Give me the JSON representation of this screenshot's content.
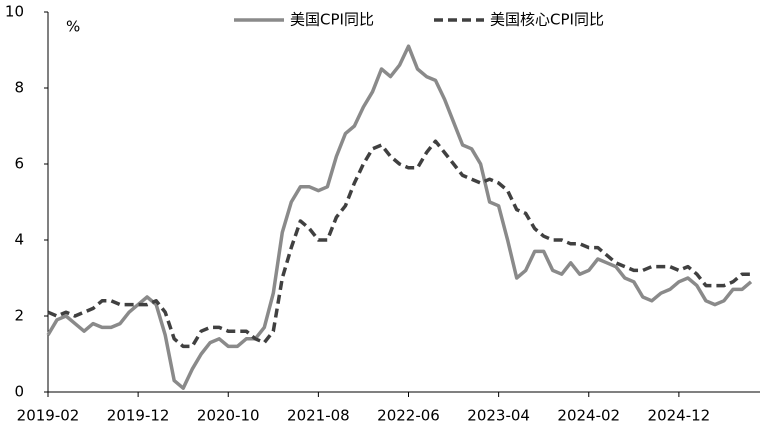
{
  "chart_data": {
    "type": "line",
    "y_unit": "%",
    "x": [
      "2019-02",
      "2019-03",
      "2019-04",
      "2019-05",
      "2019-06",
      "2019-07",
      "2019-08",
      "2019-09",
      "2019-10",
      "2019-11",
      "2019-12",
      "2020-01",
      "2020-02",
      "2020-03",
      "2020-04",
      "2020-05",
      "2020-06",
      "2020-07",
      "2020-08",
      "2020-09",
      "2020-10",
      "2020-11",
      "2020-12",
      "2021-01",
      "2021-02",
      "2021-03",
      "2021-04",
      "2021-05",
      "2021-06",
      "2021-07",
      "2021-08",
      "2021-09",
      "2021-10",
      "2021-11",
      "2021-12",
      "2022-01",
      "2022-02",
      "2022-03",
      "2022-04",
      "2022-05",
      "2022-06",
      "2022-07",
      "2022-08",
      "2022-09",
      "2022-10",
      "2022-11",
      "2022-12",
      "2023-01",
      "2023-02",
      "2023-03",
      "2023-04",
      "2023-05",
      "2023-06",
      "2023-07",
      "2023-08",
      "2023-09",
      "2023-10",
      "2023-11",
      "2023-12",
      "2024-01",
      "2024-02",
      "2024-03",
      "2024-04",
      "2024-05",
      "2024-06",
      "2024-07",
      "2024-08",
      "2024-09",
      "2024-10",
      "2024-11",
      "2024-12",
      "2025-01",
      "2025-02",
      "2025-03",
      "2025-04",
      "2025-05",
      "2025-06",
      "2025-07",
      "2025-08"
    ],
    "series": [
      {
        "name": "美国CPI同比",
        "color": "#8a8a8a",
        "dashed": false,
        "values": [
          1.5,
          1.9,
          2.0,
          1.8,
          1.6,
          1.8,
          1.7,
          1.7,
          1.8,
          2.1,
          2.3,
          2.5,
          2.3,
          1.5,
          0.3,
          0.1,
          0.6,
          1.0,
          1.3,
          1.4,
          1.2,
          1.2,
          1.4,
          1.4,
          1.7,
          2.6,
          4.2,
          5.0,
          5.4,
          5.4,
          5.3,
          5.4,
          6.2,
          6.8,
          7.0,
          7.5,
          7.9,
          8.5,
          8.3,
          8.6,
          9.1,
          8.5,
          8.3,
          8.2,
          7.7,
          7.1,
          6.5,
          6.4,
          6.0,
          5.0,
          4.9,
          4.0,
          3.0,
          3.2,
          3.7,
          3.7,
          3.2,
          3.1,
          3.4,
          3.1,
          3.2,
          3.5,
          3.4,
          3.3,
          3.0,
          2.9,
          2.5,
          2.4,
          2.6,
          2.7,
          2.9,
          3.0,
          2.8,
          2.4,
          2.3,
          2.4,
          2.7,
          2.7,
          2.9
        ]
      },
      {
        "name": "美国核心CPI同比",
        "color": "#404040",
        "dashed": true,
        "values": [
          2.1,
          2.0,
          2.1,
          2.0,
          2.1,
          2.2,
          2.4,
          2.4,
          2.3,
          2.3,
          2.3,
          2.3,
          2.4,
          2.1,
          1.4,
          1.2,
          1.2,
          1.6,
          1.7,
          1.7,
          1.6,
          1.6,
          1.6,
          1.4,
          1.3,
          1.6,
          3.0,
          3.8,
          4.5,
          4.3,
          4.0,
          4.0,
          4.6,
          4.9,
          5.5,
          6.0,
          6.4,
          6.5,
          6.2,
          6.0,
          5.9,
          5.9,
          6.3,
          6.6,
          6.3,
          6.0,
          5.7,
          5.6,
          5.5,
          5.6,
          5.5,
          5.3,
          4.8,
          4.7,
          4.3,
          4.1,
          4.0,
          4.0,
          3.9,
          3.9,
          3.8,
          3.8,
          3.6,
          3.4,
          3.3,
          3.2,
          3.2,
          3.3,
          3.3,
          3.3,
          3.2,
          3.3,
          3.1,
          2.8,
          2.8,
          2.8,
          2.9,
          3.1,
          3.1
        ]
      }
    ],
    "xlim": [
      "2019-02",
      "2025-09"
    ],
    "xticks": [
      "2019-02",
      "2019-12",
      "2020-10",
      "2021-08",
      "2022-06",
      "2023-04",
      "2024-02",
      "2024-12"
    ],
    "ylim": [
      0,
      10
    ],
    "yticks": [
      0,
      2,
      4,
      6,
      8,
      10
    ],
    "grid": false,
    "legend": "top"
  }
}
